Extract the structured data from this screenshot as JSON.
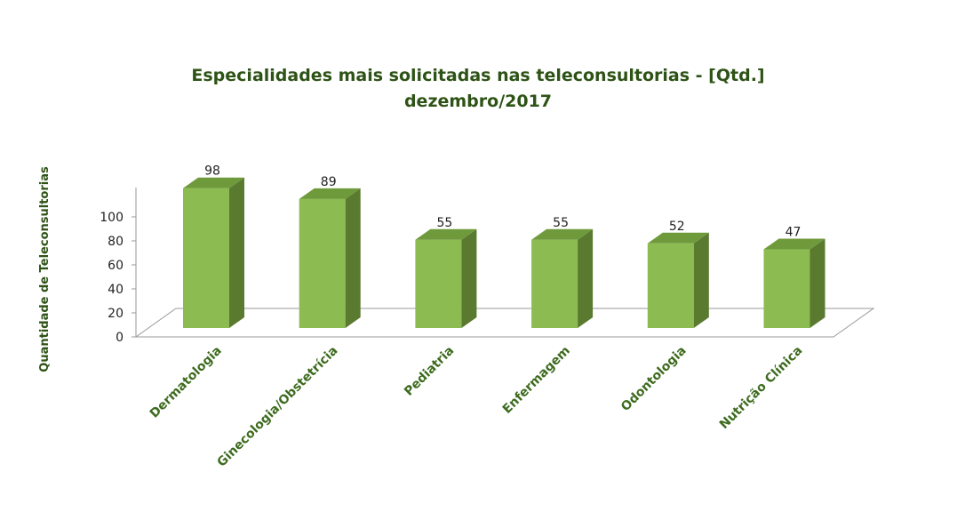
{
  "chart_data": {
    "type": "bar",
    "title": "Especialidades mais solicitadas nas teleconsultorias - [Qtd.]",
    "subtitle": "dezembro/2017",
    "xlabel": "",
    "ylabel": "Quantidade de Teleconsultorias",
    "categories": [
      "Dermatologia",
      "Ginecologia/Obstetrícia",
      "Pediatria",
      "Enfermagem",
      "Odontologia",
      "Nutrição Clínica"
    ],
    "values": [
      98,
      89,
      55,
      55,
      52,
      47
    ],
    "value_labels": [
      "98",
      "89",
      "55",
      "55",
      "52",
      "47"
    ],
    "ylim": [
      0,
      100
    ],
    "yticks": [
      "0",
      "20",
      "40",
      "60",
      "80",
      "100"
    ],
    "yticks_values": [
      0,
      20,
      40,
      60,
      80,
      100
    ],
    "grid": false,
    "legend": "none",
    "style": "3d-column"
  },
  "colors": {
    "bar_front": "#8BBB51",
    "bar_side": "#5A7A2F",
    "bar_top": "#6F9A3C",
    "title_text": "#2E5316",
    "category_text": "#3D6B1E",
    "axis_line": "#9A9A9A"
  }
}
